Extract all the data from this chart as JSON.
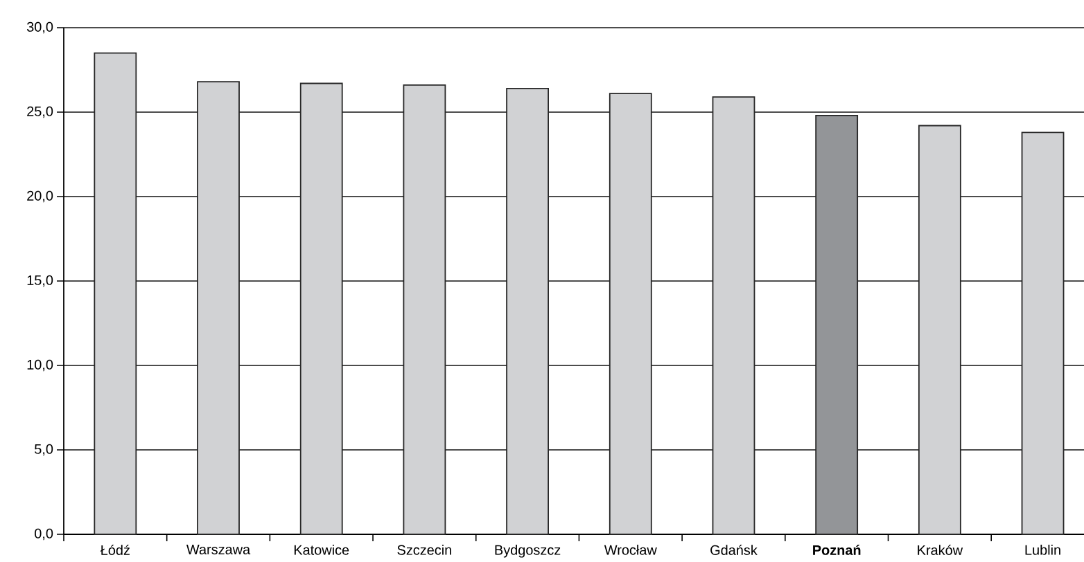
{
  "chart_data": {
    "type": "bar",
    "categories": [
      "Łódź",
      "Warszawa",
      "Katowice",
      "Szczecin",
      "Bydgoszcz",
      "Wrocław",
      "Gdańsk",
      "**Poznań**",
      "Kraków",
      "Lublin"
    ],
    "values": [
      28.5,
      26.8,
      26.7,
      26.6,
      26.4,
      26.1,
      25.9,
      24.8,
      24.2,
      23.8
    ],
    "colors": [
      "#d1d2d4",
      "#d1d2d4",
      "#d1d2d4",
      "#d1d2d4",
      "#d1d2d4",
      "#d1d2d4",
      "#d1d2d4",
      "#939598",
      "#d1d2d4",
      "#d1d2d4"
    ],
    "ylim": [
      0,
      30
    ],
    "yticks": [
      {
        "value": 0,
        "label": "0,0"
      },
      {
        "value": 5,
        "label": "5,0"
      },
      {
        "value": 10,
        "label": "10,0"
      },
      {
        "value": 15,
        "label": "15,0"
      },
      {
        "value": 20,
        "label": "20,0"
      },
      {
        "value": 25,
        "label": "25,0"
      },
      {
        "value": 30,
        "label": "30,0"
      }
    ],
    "grid": true
  }
}
